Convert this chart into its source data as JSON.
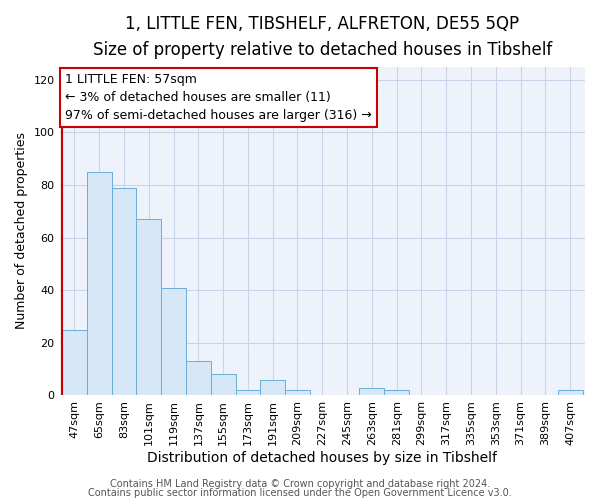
{
  "title": "1, LITTLE FEN, TIBSHELF, ALFRETON, DE55 5QP",
  "subtitle": "Size of property relative to detached houses in Tibshelf",
  "xlabel": "Distribution of detached houses by size in Tibshelf",
  "ylabel": "Number of detached properties",
  "bar_values": [
    25,
    85,
    79,
    67,
    41,
    13,
    8,
    2,
    6,
    2,
    0,
    0,
    3,
    2,
    0,
    0,
    0,
    0,
    0,
    0,
    2
  ],
  "categories": [
    "47sqm",
    "65sqm",
    "83sqm",
    "101sqm",
    "119sqm",
    "137sqm",
    "155sqm",
    "173sqm",
    "191sqm",
    "209sqm",
    "227sqm",
    "245sqm",
    "263sqm",
    "281sqm",
    "299sqm",
    "317sqm",
    "335sqm",
    "353sqm",
    "371sqm",
    "389sqm",
    "407sqm"
  ],
  "bar_color": "#d6e8f7",
  "bar_edge_color": "#6aaed6",
  "ylim": [
    0,
    125
  ],
  "yticks": [
    0,
    20,
    40,
    60,
    80,
    100,
    120
  ],
  "property_label": "1 LITTLE FEN: 57sqm",
  "pct_smaller": "3%",
  "count_smaller": 11,
  "pct_larger": "97%",
  "count_larger": 316,
  "footer_line1": "Contains HM Land Registry data © Crown copyright and database right 2024.",
  "footer_line2": "Contains public sector information licensed under the Open Government Licence v3.0.",
  "bg_color": "#ffffff",
  "plot_bg_color": "#eef2fa",
  "grid_color": "#c8d4e8",
  "title_fontsize": 12,
  "subtitle_fontsize": 10,
  "annotation_fontsize": 9,
  "tick_fontsize": 8,
  "ylabel_fontsize": 9,
  "xlabel_fontsize": 10,
  "footer_fontsize": 7
}
